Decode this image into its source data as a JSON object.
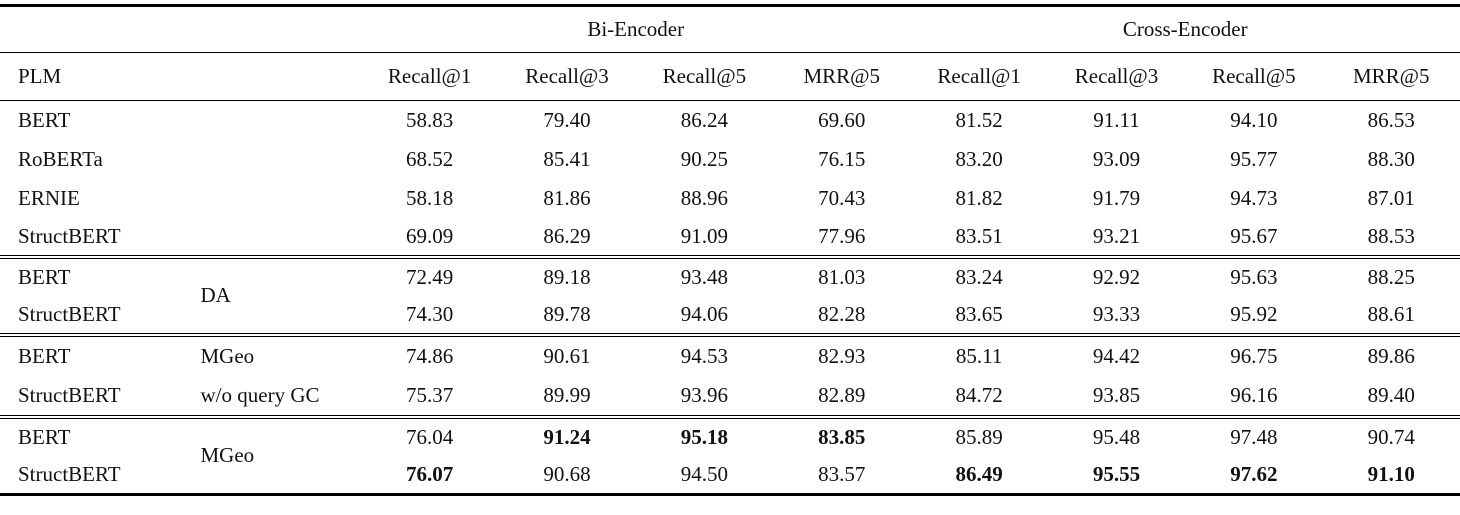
{
  "table": {
    "group_headers": {
      "bi_encoder": "Bi-Encoder",
      "cross_encoder": "Cross-Encoder"
    },
    "plm_header": "PLM",
    "metric_headers": [
      "Recall@1",
      "Recall@3",
      "Recall@5",
      "MRR@5",
      "Recall@1",
      "Recall@3",
      "Recall@5",
      "MRR@5"
    ],
    "blocks": [
      {
        "variant": [],
        "rows": [
          {
            "plm": "BERT",
            "values": [
              "58.83",
              "79.40",
              "86.24",
              "69.60",
              "81.52",
              "91.11",
              "94.10",
              "86.53"
            ],
            "bold": []
          },
          {
            "plm": "RoBERTa",
            "values": [
              "68.52",
              "85.41",
              "90.25",
              "76.15",
              "83.20",
              "93.09",
              "95.77",
              "88.30"
            ],
            "bold": []
          },
          {
            "plm": "ERNIE",
            "values": [
              "58.18",
              "81.86",
              "88.96",
              "70.43",
              "81.82",
              "91.79",
              "94.73",
              "87.01"
            ],
            "bold": []
          },
          {
            "plm": "StructBERT",
            "values": [
              "69.09",
              "86.29",
              "91.09",
              "77.96",
              "83.51",
              "93.21",
              "95.67",
              "88.53"
            ],
            "bold": []
          }
        ]
      },
      {
        "variant": [
          "DA"
        ],
        "rows": [
          {
            "plm": "BERT",
            "values": [
              "72.49",
              "89.18",
              "93.48",
              "81.03",
              "83.24",
              "92.92",
              "95.63",
              "88.25"
            ],
            "bold": []
          },
          {
            "plm": "StructBERT",
            "values": [
              "74.30",
              "89.78",
              "94.06",
              "82.28",
              "83.65",
              "93.33",
              "95.92",
              "88.61"
            ],
            "bold": []
          }
        ]
      },
      {
        "variant": [
          "MGeo",
          "w/o query GC"
        ],
        "rows": [
          {
            "plm": "BERT",
            "values": [
              "74.86",
              "90.61",
              "94.53",
              "82.93",
              "85.11",
              "94.42",
              "96.75",
              "89.86"
            ],
            "bold": []
          },
          {
            "plm": "StructBERT",
            "values": [
              "75.37",
              "89.99",
              "93.96",
              "82.89",
              "84.72",
              "93.85",
              "96.16",
              "89.40"
            ],
            "bold": []
          }
        ]
      },
      {
        "variant": [
          "MGeo"
        ],
        "rows": [
          {
            "plm": "BERT",
            "values": [
              "76.04",
              "91.24",
              "95.18",
              "83.85",
              "85.89",
              "95.48",
              "97.48",
              "90.74"
            ],
            "bold": [
              1,
              2,
              3
            ]
          },
          {
            "plm": "StructBERT",
            "values": [
              "76.07",
              "90.68",
              "94.50",
              "83.57",
              "86.49",
              "95.55",
              "97.62",
              "91.10"
            ],
            "bold": [
              0,
              4,
              5,
              6,
              7
            ]
          }
        ]
      }
    ],
    "colors": {
      "text": "#111111",
      "background": "#ffffff",
      "rule": "#000000"
    }
  }
}
